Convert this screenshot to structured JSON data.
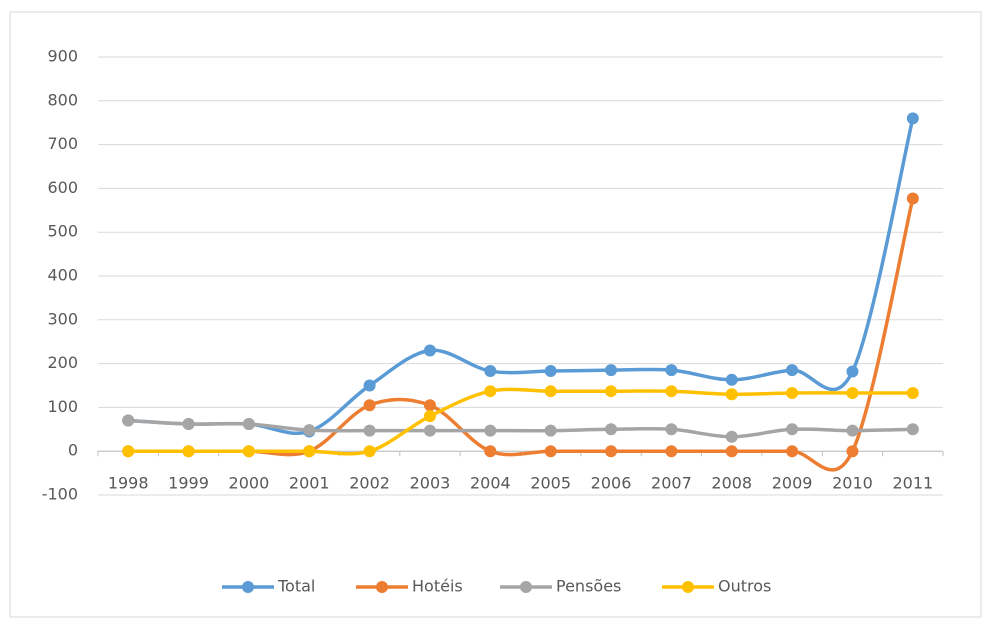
{
  "chart_data": {
    "type": "line",
    "categories": [
      "1998",
      "1999",
      "2000",
      "2001",
      "2002",
      "2003",
      "2004",
      "2005",
      "2006",
      "2007",
      "2008",
      "2009",
      "2010",
      "2011"
    ],
    "series": [
      {
        "name": "Total",
        "color": "#5b9bd5",
        "values": [
          70,
          62,
          62,
          45,
          150,
          230,
          183,
          183,
          185,
          185,
          163,
          185,
          182,
          760
        ]
      },
      {
        "name": "Hotéis",
        "color": "#ed7d31",
        "values": [
          0,
          0,
          0,
          0,
          105,
          105,
          0,
          0,
          0,
          0,
          0,
          0,
          0,
          577
        ]
      },
      {
        "name": "Pensões",
        "color": "#a5a5a5",
        "values": [
          70,
          62,
          62,
          48,
          47,
          47,
          47,
          47,
          50,
          50,
          33,
          50,
          47,
          50
        ]
      },
      {
        "name": "Outros",
        "color": "#ffc000",
        "values": [
          0,
          0,
          0,
          0,
          0,
          80,
          137,
          137,
          137,
          137,
          130,
          133,
          133,
          133
        ]
      }
    ],
    "ylim": [
      -100,
      900
    ],
    "yticks": [
      -100,
      0,
      100,
      200,
      300,
      400,
      500,
      600,
      700,
      800,
      900
    ],
    "grid": true,
    "smooth": true,
    "legend": "bottom"
  }
}
